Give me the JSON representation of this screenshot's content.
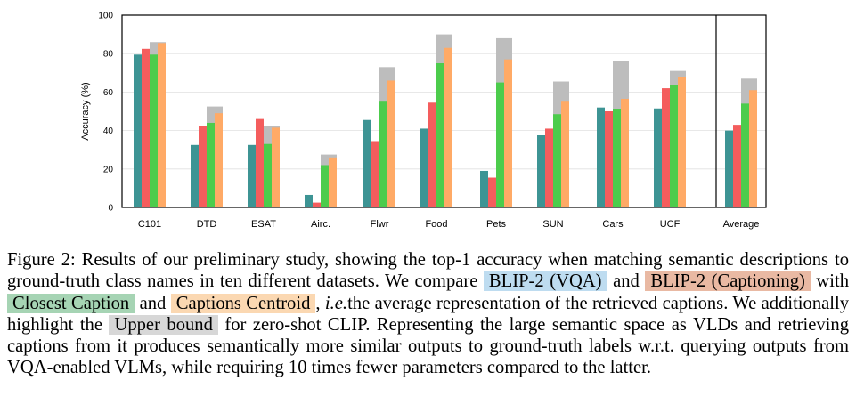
{
  "chart_data": {
    "type": "bar",
    "ylabel": "Accuracy (%)",
    "ylim": [
      0,
      100
    ],
    "yticks": [
      0,
      20,
      40,
      60,
      80,
      100
    ],
    "categories": [
      "C101",
      "DTD",
      "ESAT",
      "Airc.",
      "Flwr",
      "Food",
      "Pets",
      "SUN",
      "Cars",
      "UCF",
      "Average"
    ],
    "series": [
      {
        "name": "BLIP-2 (VQA)",
        "color": "#3d9494",
        "values": [
          79.5,
          32.5,
          32.5,
          6.5,
          45.5,
          41,
          19,
          37.5,
          52,
          51.5,
          40
        ]
      },
      {
        "name": "BLIP-2 (Captioning)",
        "color": "#f45d5d",
        "values": [
          82.5,
          42.5,
          46,
          2.5,
          34.5,
          54.5,
          15.5,
          41,
          50,
          62,
          43
        ]
      },
      {
        "name": "Closest Caption",
        "color": "#4ccc4c",
        "values": [
          79.5,
          44,
          33,
          22,
          55,
          75,
          65,
          48.5,
          51,
          63.5,
          54
        ]
      },
      {
        "name": "Captions Centroid",
        "color": "#ffaa66",
        "values": [
          85.5,
          49,
          41.5,
          26,
          66,
          83,
          77,
          55,
          56.5,
          68,
          61
        ]
      }
    ],
    "upper_bound": {
      "name": "Upper bound",
      "color": "#bdbdbd",
      "values": [
        86,
        52.5,
        42.5,
        27.5,
        73,
        90,
        88,
        65.5,
        76,
        71,
        67
      ]
    }
  },
  "caption": {
    "p1": "Figure 2: Results of our preliminary study, showing the top-1 accuracy when matching semantic descriptions to ground-truth class names in ten different datasets. We compare ",
    "hl_vqa": "BLIP-2 (VQA)",
    "p2": " and ",
    "hl_cap": "BLIP-2 (Captioning)",
    "p3": " with ",
    "hl_closest": "Closest Caption",
    "p4": " and ",
    "hl_centroid": "Captions Centroid",
    "p5": ", ",
    "ie": "i.e.",
    "p6": "the average representation of the retrieved captions. We additionally highlight the ",
    "hl_upper": "Upper bound",
    "p7": " for zero-shot CLIP. Representing the large semantic space as VLDs and retrieving captions from it produces semantically more similar outputs to ground-truth labels w.r.t. querying outputs from VQA-enabled VLMs, while requiring 10 times fewer parameters compared to the latter."
  }
}
